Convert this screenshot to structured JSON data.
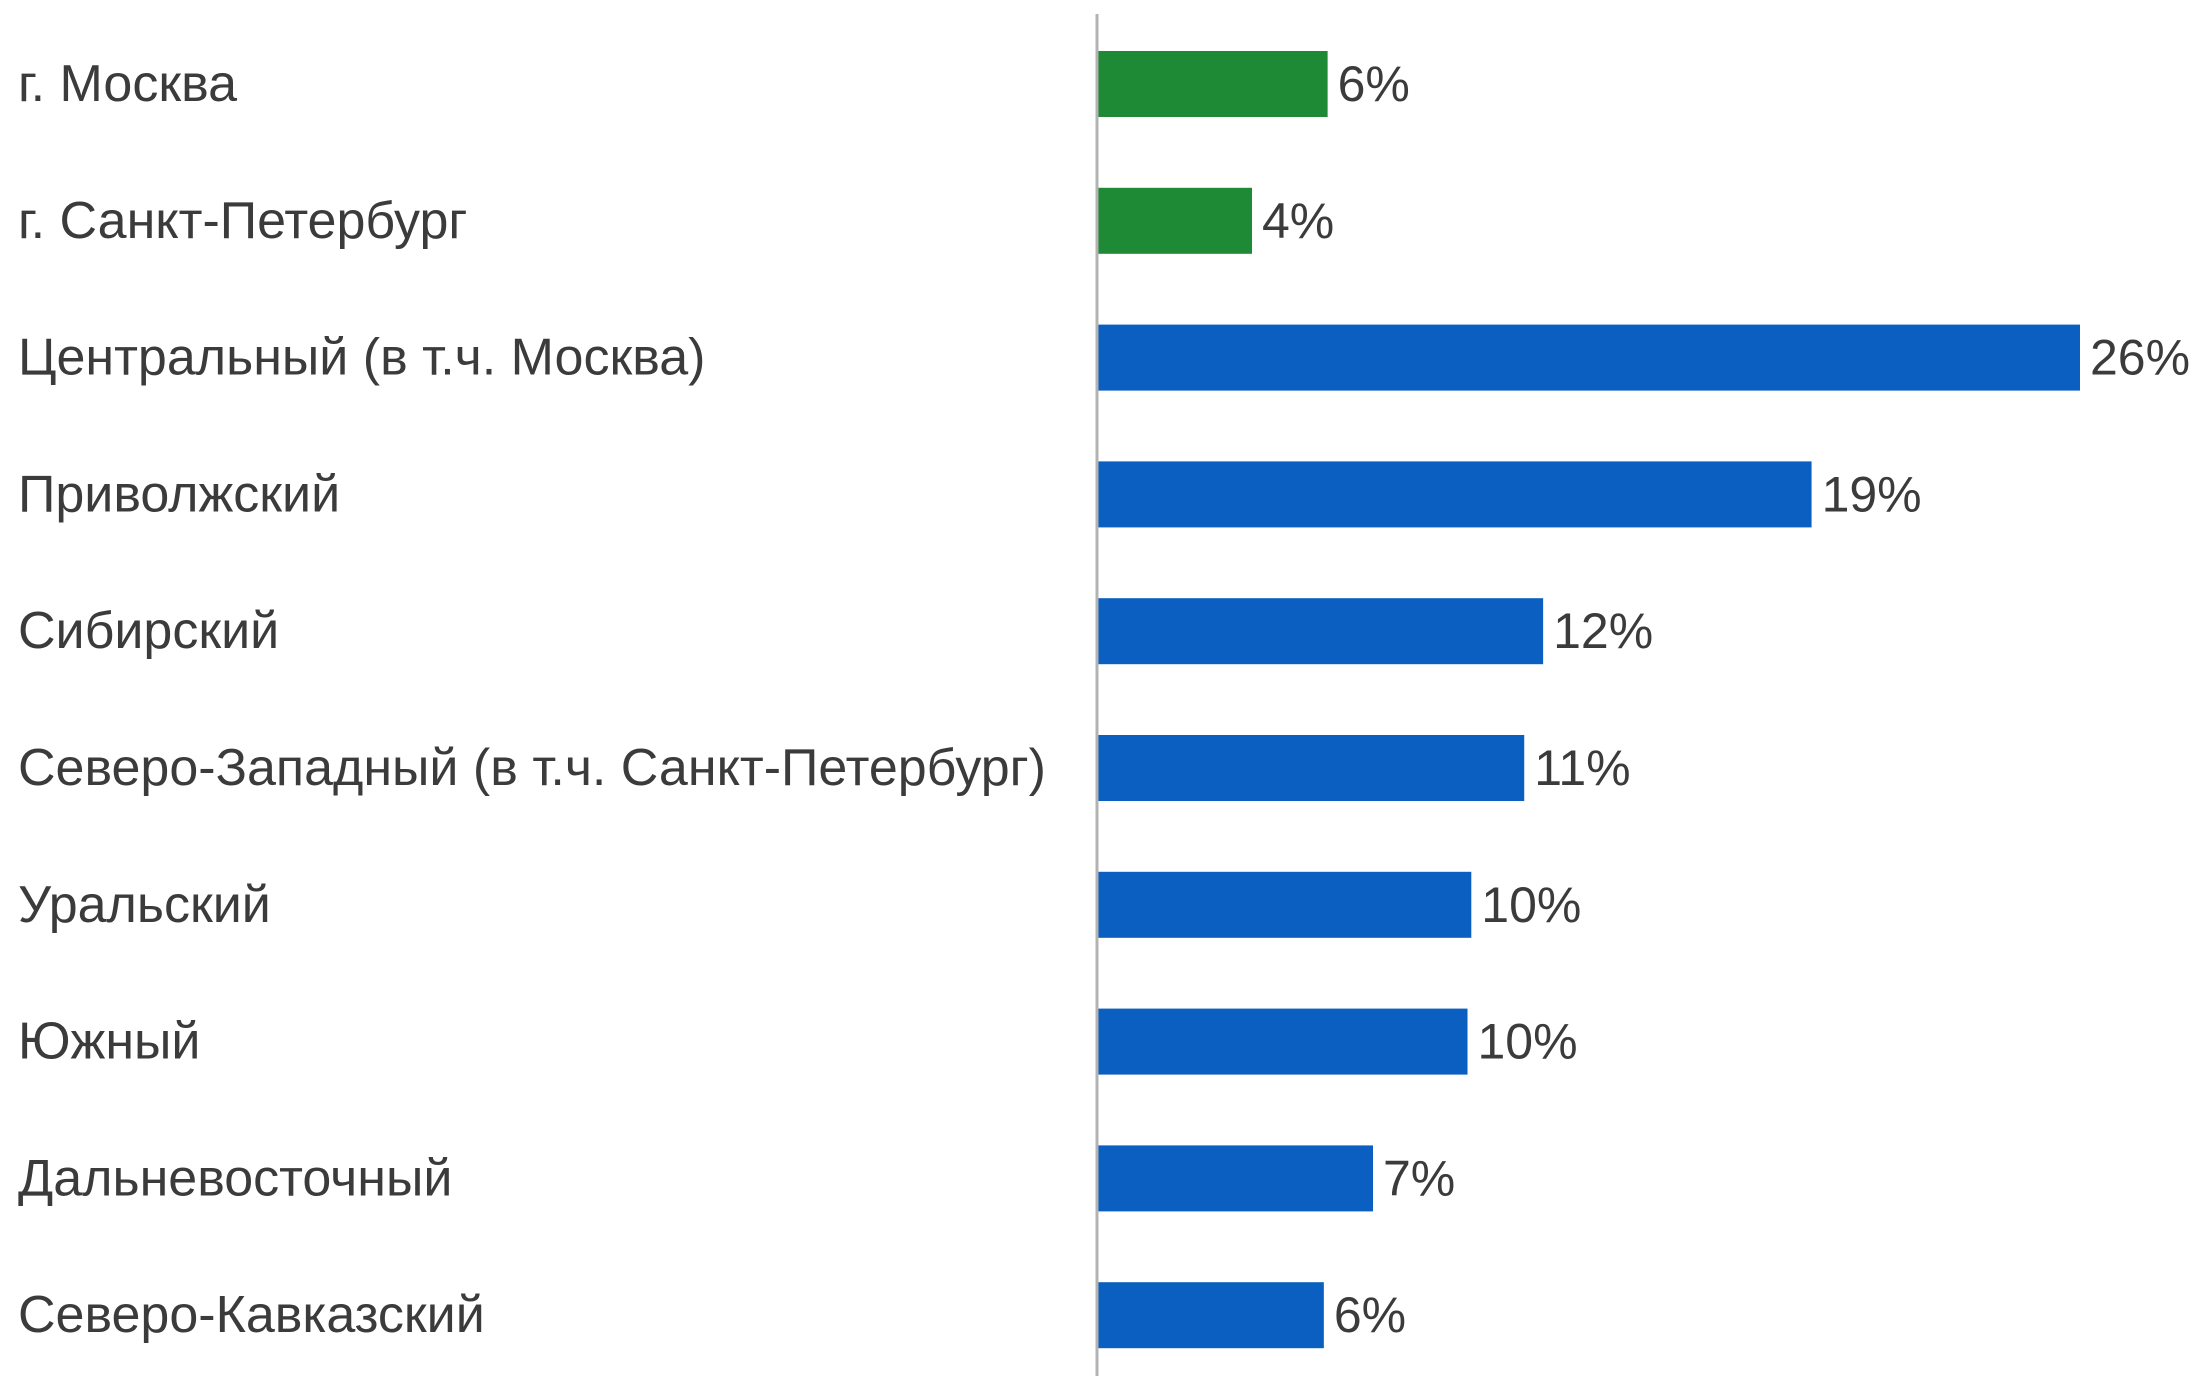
{
  "chart_data": {
    "type": "bar",
    "orientation": "horizontal",
    "title": "",
    "xlabel": "",
    "ylabel": "",
    "grid": false,
    "legend": "none",
    "value_format": "percent",
    "xlim": [
      0,
      26
    ],
    "categories": [
      "г. Москва",
      "г. Санкт-Петербург",
      "Центральный (в т.ч. Москва)",
      "Приволжский",
      "Сибирский",
      "Северо-Западный (в т.ч. Санкт-Петербург)",
      "Уральский",
      "Южный",
      "Дальневосточный",
      "Северо-Кавказский"
    ],
    "values": [
      6,
      4,
      26,
      19,
      12,
      11,
      10,
      10,
      7,
      6
    ],
    "precise_values": [
      6.1,
      4.1,
      26.0,
      18.9,
      11.8,
      11.3,
      9.9,
      9.8,
      7.3,
      6.0
    ],
    "value_labels": [
      "6%",
      "4%",
      "26%",
      "19%",
      "12%",
      "11%",
      "10%",
      "10%",
      "7%",
      "6%"
    ],
    "bar_colors": [
      "#1e8a36",
      "#1e8a36",
      "#0a5fc0",
      "#0a5fc0",
      "#0a5fc0",
      "#0a5fc0",
      "#0a5fc0",
      "#0a5fc0",
      "#0a5fc0",
      "#0a5fc0"
    ],
    "axis_color": "#b3b3b3",
    "text_color": "#3b3b3b"
  }
}
